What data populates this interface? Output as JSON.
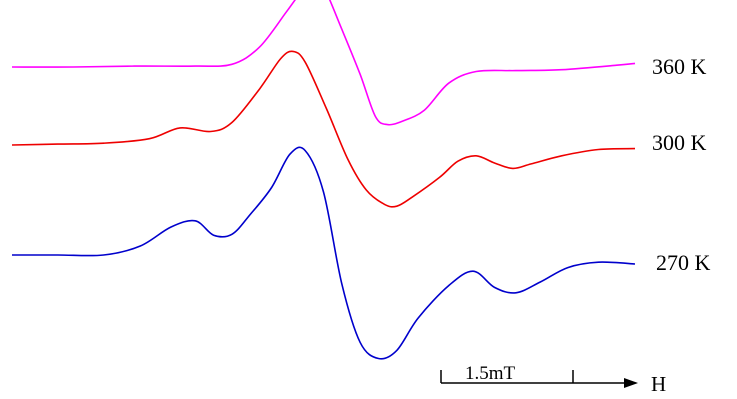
{
  "chart_data": {
    "type": "line",
    "title": "",
    "xlabel": "H",
    "ylabel": "",
    "x_axis_unit_bar": "1.5mT",
    "grid": false,
    "series": [
      {
        "name": "360 K",
        "color": "#ff00ff",
        "offset": 2.0,
        "points": [
          [
            0.0,
            0.0
          ],
          [
            2.0,
            0.0
          ],
          [
            4.0,
            0.01
          ],
          [
            6.0,
            0.01
          ],
          [
            7.2,
            0.03
          ],
          [
            8.1,
            0.22
          ],
          [
            9.0,
            0.62
          ],
          [
            9.6,
            0.9
          ],
          [
            9.9,
            1.0
          ],
          [
            10.2,
            0.9
          ],
          [
            10.8,
            0.42
          ],
          [
            11.4,
            -0.08
          ],
          [
            11.9,
            -0.55
          ],
          [
            12.3,
            -0.64
          ],
          [
            12.8,
            -0.6
          ],
          [
            13.5,
            -0.48
          ],
          [
            14.3,
            -0.18
          ],
          [
            15.2,
            -0.05
          ],
          [
            16.5,
            -0.04
          ],
          [
            18.0,
            -0.03
          ],
          [
            19.8,
            0.02
          ],
          [
            20.4,
            0.04
          ]
        ]
      },
      {
        "name": "300 K",
        "color": "#ee0000",
        "offset": 1.0,
        "points": [
          [
            0.0,
            0.0
          ],
          [
            1.5,
            0.01
          ],
          [
            3.0,
            0.02
          ],
          [
            4.5,
            0.07
          ],
          [
            5.5,
            0.19
          ],
          [
            6.5,
            0.15
          ],
          [
            7.2,
            0.25
          ],
          [
            8.1,
            0.62
          ],
          [
            8.8,
            0.96
          ],
          [
            9.2,
            1.04
          ],
          [
            9.6,
            0.92
          ],
          [
            10.3,
            0.4
          ],
          [
            11.0,
            -0.16
          ],
          [
            11.6,
            -0.5
          ],
          [
            12.2,
            -0.66
          ],
          [
            12.6,
            -0.68
          ],
          [
            13.1,
            -0.58
          ],
          [
            14.0,
            -0.36
          ],
          [
            14.6,
            -0.18
          ],
          [
            15.2,
            -0.12
          ],
          [
            15.8,
            -0.2
          ],
          [
            16.4,
            -0.26
          ],
          [
            17.0,
            -0.21
          ],
          [
            18.0,
            -0.12
          ],
          [
            19.2,
            -0.05
          ],
          [
            20.4,
            -0.04
          ]
        ]
      },
      {
        "name": "270 K",
        "color": "#0000cc",
        "offset": 0.0,
        "points": [
          [
            0.0,
            0.0
          ],
          [
            1.5,
            0.0
          ],
          [
            3.0,
            0.0
          ],
          [
            4.2,
            0.1
          ],
          [
            5.2,
            0.31
          ],
          [
            6.0,
            0.38
          ],
          [
            6.6,
            0.22
          ],
          [
            7.2,
            0.23
          ],
          [
            7.8,
            0.45
          ],
          [
            8.5,
            0.75
          ],
          [
            9.1,
            1.12
          ],
          [
            9.6,
            1.16
          ],
          [
            10.2,
            0.7
          ],
          [
            10.8,
            -0.32
          ],
          [
            11.4,
            -0.97
          ],
          [
            12.0,
            -1.15
          ],
          [
            12.6,
            -1.06
          ],
          [
            13.3,
            -0.7
          ],
          [
            14.3,
            -0.34
          ],
          [
            15.1,
            -0.18
          ],
          [
            15.8,
            -0.36
          ],
          [
            16.5,
            -0.42
          ],
          [
            17.3,
            -0.3
          ],
          [
            18.2,
            -0.14
          ],
          [
            19.2,
            -0.08
          ],
          [
            20.4,
            -0.1
          ]
        ]
      }
    ]
  }
}
